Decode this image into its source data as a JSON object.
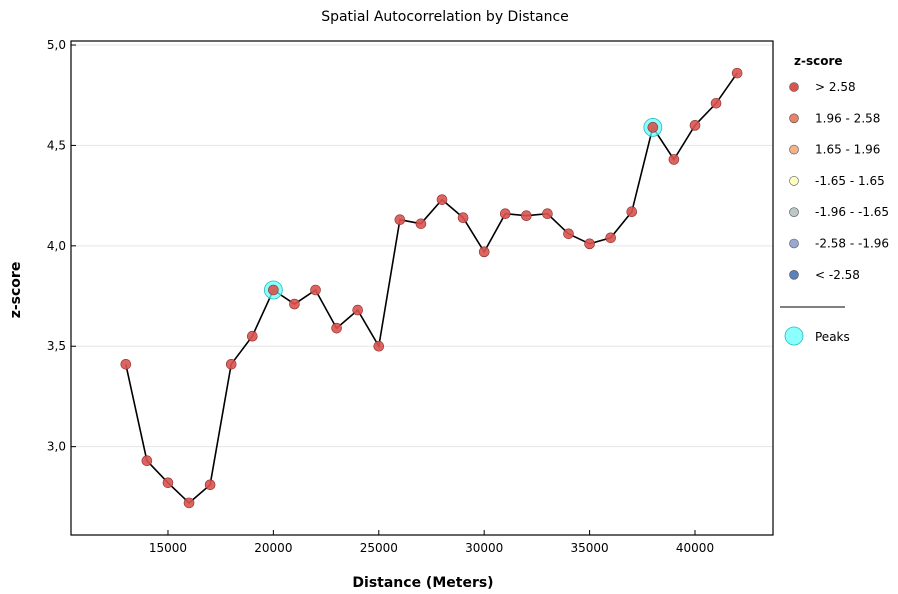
{
  "chart_data": {
    "type": "line",
    "title": "Spatial Autocorrelation by Distance",
    "xlabel": "Distance (Meters)",
    "ylabel": "z-score",
    "xlim": [
      10400,
      43700
    ],
    "ylim": [
      2.56,
      5.02
    ],
    "xticks": [
      15000,
      20000,
      25000,
      30000,
      35000,
      40000
    ],
    "xtick_labels": [
      "15000",
      "20000",
      "25000",
      "30000",
      "35000",
      "40000"
    ],
    "yticks": [
      3.0,
      3.5,
      4.0,
      4.5,
      5.0
    ],
    "ytick_labels": [
      "3,0",
      "3,5",
      "4,0",
      "4,5",
      "5,0"
    ],
    "grid": "horizontal",
    "series": [
      {
        "name": "> 2.58",
        "color": "#d9534f",
        "x": [
          13000,
          14000,
          15000,
          16000,
          17000,
          18000,
          19000,
          20000,
          21000,
          22000,
          23000,
          24000,
          25000,
          26000,
          27000,
          28000,
          29000,
          30000,
          31000,
          32000,
          33000,
          34000,
          35000,
          36000,
          37000,
          38000,
          39000,
          40000,
          41000,
          42000
        ],
        "y": [
          3.41,
          2.93,
          2.82,
          2.72,
          2.81,
          3.41,
          3.55,
          3.78,
          3.71,
          3.78,
          3.59,
          3.68,
          3.5,
          4.13,
          4.11,
          4.23,
          4.14,
          3.97,
          4.16,
          4.15,
          4.16,
          4.06,
          4.01,
          4.04,
          4.17,
          4.59,
          4.43,
          4.6,
          4.71,
          4.86
        ]
      }
    ],
    "peaks": {
      "name": "Peaks",
      "color": "#66ffff",
      "x": [
        20000,
        38000
      ],
      "y": [
        3.78,
        4.59
      ]
    },
    "legend": {
      "position": "right",
      "title": "z-score",
      "entries": [
        {
          "label": "> 2.58",
          "color": "#d9534f"
        },
        {
          "label": "1.96 - 2.58",
          "color": "#e8826a"
        },
        {
          "label": "1.65 - 1.96",
          "color": "#f0b48a"
        },
        {
          "label": "-1.65 - 1.65",
          "color": "#ffffc0"
        },
        {
          "label": "-1.96 - -1.65",
          "color": "#bcc8c8"
        },
        {
          "label": "-2.58 - -1.96",
          "color": "#98a8d0"
        },
        {
          "label": "< -2.58",
          "color": "#5b80bf"
        }
      ],
      "peaks_label": "Peaks"
    }
  }
}
